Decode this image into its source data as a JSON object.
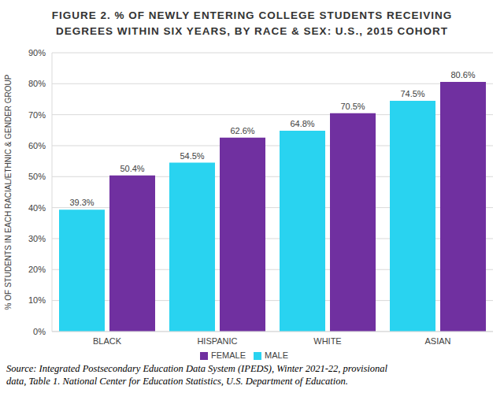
{
  "chart_data": {
    "type": "bar",
    "title": "FIGURE 2. % OF NEWLY ENTERING COLLEGE STUDENTS RECEIVING\nDEGREES WITHIN SIX YEARS, BY RACE & SEX: U.S., 2015 COHORT",
    "y_label": "% OF STUDENTS IN EACH RACIAL/ETHNIC & GENDER GROUP",
    "source": "Source: Integrated Postsecondary Education Data System (IPEDS), Winter 2021-22, provisional\ndata, Table 1. National Center for Education Statistics, U.S. Department of Education.",
    "categories": [
      "BLACK",
      "HISPANIC",
      "WHITE",
      "ASIAN"
    ],
    "series": [
      {
        "name": "MALE",
        "color": "#29d3f0",
        "values": [
          39.3,
          54.5,
          64.8,
          74.5
        ],
        "value_labels": [
          "39.3%",
          "54.5%",
          "64.8%",
          "74.5%"
        ]
      },
      {
        "name": "FEMALE",
        "color": "#7030a0",
        "values": [
          50.4,
          62.6,
          70.5,
          80.6
        ],
        "value_labels": [
          "50.4%",
          "62.6%",
          "70.5%",
          "80.6%"
        ]
      }
    ],
    "ylim": [
      0,
      90
    ],
    "yticks": [
      {
        "value": 0,
        "label": "0%"
      },
      {
        "value": 10,
        "label": "10%"
      },
      {
        "value": 20,
        "label": "20%"
      },
      {
        "value": 30,
        "label": "30%"
      },
      {
        "value": 40,
        "label": "40%"
      },
      {
        "value": 50,
        "label": "50%"
      },
      {
        "value": 60,
        "label": "60%"
      },
      {
        "value": 70,
        "label": "70%"
      },
      {
        "value": 80,
        "label": "80%"
      },
      {
        "value": 90,
        "label": "90%"
      }
    ],
    "grid": true,
    "legend": "bottom",
    "data_labels": true
  }
}
